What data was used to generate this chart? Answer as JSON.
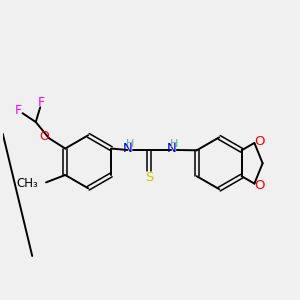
{
  "bg_color": "#f0f0f0",
  "bond_color": "#000000",
  "N_color": "#0000cc",
  "O_color": "#ff0000",
  "S_color": "#cccc00",
  "F_color": "#ff00ff",
  "H_color": "#5aacac",
  "figsize": [
    3.0,
    3.0
  ],
  "dpi": 100,
  "xlim": [
    0,
    10
  ],
  "ylim": [
    0,
    10
  ]
}
